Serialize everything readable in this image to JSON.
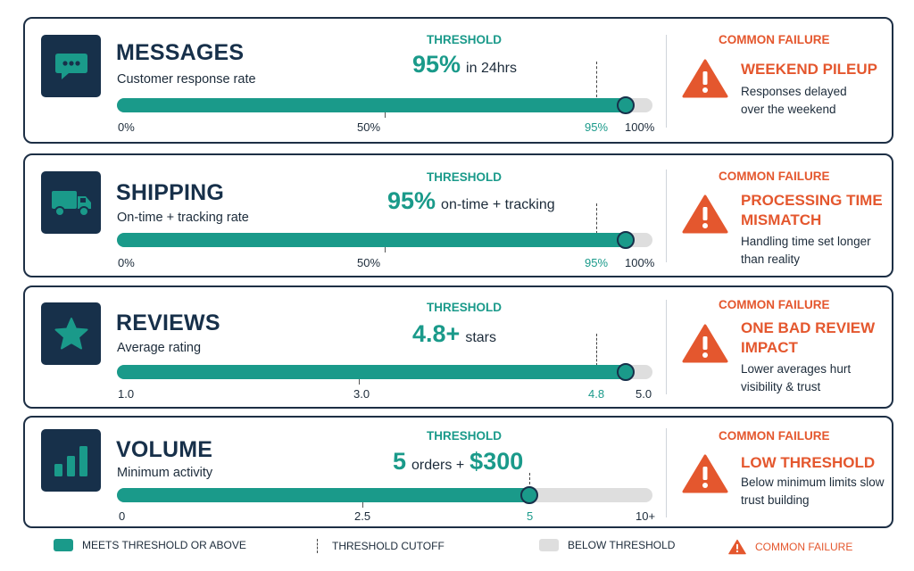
{
  "threshold_label": "THRESHOLD",
  "failure_label": "COMMON FAILURE",
  "colors": {
    "teal": "#1a9a8a",
    "navy": "#17304a",
    "orange": "#e4572e",
    "gray": "#dedede"
  },
  "metrics": [
    {
      "icon": "chat-bubble-icon",
      "title": "MESSAGES",
      "subtitle": "Customer response rate",
      "threshold_big": "95%",
      "threshold_small": "in 24hrs",
      "fill_percent": 95,
      "ticks": [
        "0%",
        "50%",
        "95%",
        "100%"
      ],
      "failure_title": "WEEKEND PILEUP",
      "failure_desc": "Responses delayed over the weekend"
    },
    {
      "icon": "truck-icon",
      "title": "SHIPPING",
      "subtitle": "On-time + tracking rate",
      "threshold_big": "95%",
      "threshold_small": "on-time + tracking",
      "fill_percent": 95,
      "ticks": [
        "0%",
        "50%",
        "95%",
        "100%"
      ],
      "failure_title": "PROCESSING TIME MISMATCH",
      "failure_desc": "Handling time set longer than reality"
    },
    {
      "icon": "star-icon",
      "title": "REVIEWS",
      "subtitle": "Average rating",
      "threshold_big": "4.8+",
      "threshold_small": "stars",
      "fill_percent": 95,
      "ticks": [
        "1.0",
        "3.0",
        "4.8",
        "5.0"
      ],
      "failure_title": "ONE BAD REVIEW IMPACT",
      "failure_desc": "Lower averages hurt visibility & trust"
    },
    {
      "icon": "bar-chart-icon",
      "title": "VOLUME",
      "subtitle": "Minimum activity",
      "threshold_big": "5",
      "threshold_small": "orders +",
      "threshold_big2": "$300",
      "fill_percent": 77,
      "ticks": [
        "0",
        "2.5",
        "5",
        "10+"
      ],
      "failure_title": "LOW THRESHOLD",
      "failure_desc": "Below minimum limits slow trust building"
    }
  ],
  "legend": {
    "meets": "MEETS THRESHOLD OR ABOVE",
    "cutoff": "THRESHOLD CUTOFF",
    "below": "BELOW THRESHOLD",
    "failure": "COMMON FAILURE"
  }
}
